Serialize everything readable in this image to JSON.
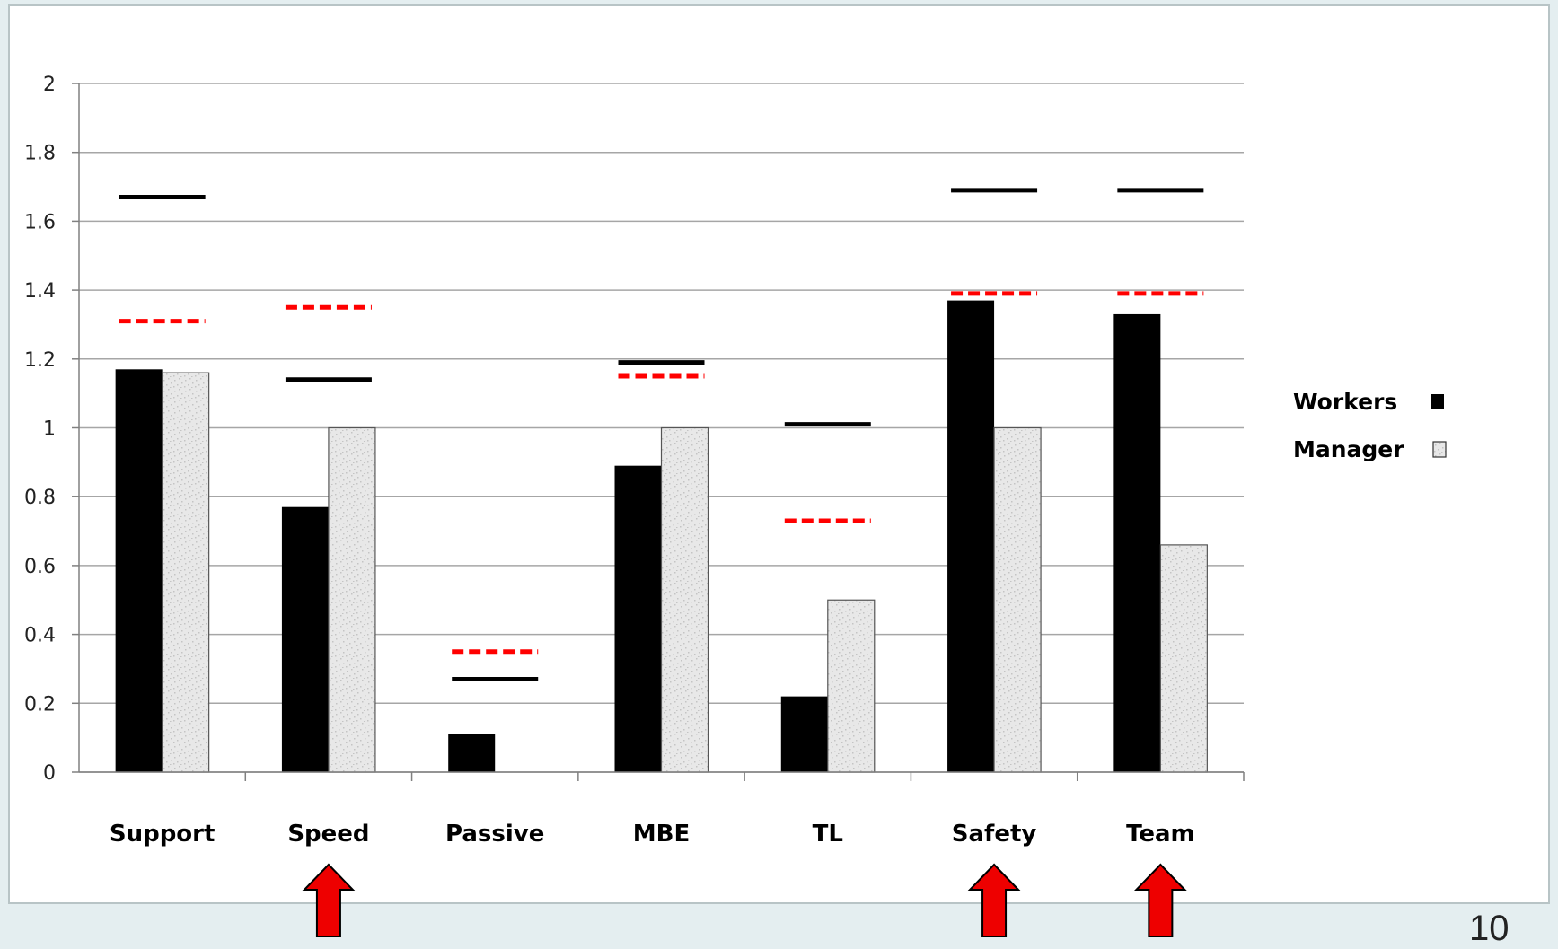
{
  "chart_data": {
    "type": "bar",
    "categories": [
      "Support",
      "Speed",
      "Passive",
      "MBE",
      "TL",
      "Safety",
      "Team"
    ],
    "series": [
      {
        "name": "Workers",
        "values": [
          1.17,
          0.77,
          0.11,
          0.89,
          0.22,
          1.37,
          1.33
        ],
        "color": "#000000"
      },
      {
        "name": "Manager",
        "values": [
          1.16,
          1.0,
          0.0,
          1.0,
          0.5,
          1.0,
          0.66
        ],
        "color": "#e8e8e8"
      }
    ],
    "reference_lines": {
      "solid_black": [
        1.67,
        1.14,
        0.27,
        1.19,
        1.01,
        1.69,
        1.69
      ],
      "dashed_red": [
        1.31,
        1.35,
        0.35,
        1.15,
        0.73,
        1.39,
        1.39
      ]
    },
    "yticks": [
      "0",
      "0.2",
      "0.4",
      "0.6",
      "0.8",
      "1",
      "1.2",
      "1.4",
      "1.6",
      "1.8",
      "2"
    ],
    "ylim": [
      0,
      2
    ],
    "grid": true,
    "legend_position": "right",
    "highlighted_categories": [
      "Speed",
      "Safety",
      "Team"
    ],
    "highlight_color": "#ee0000",
    "dash_color": "#ff0000"
  },
  "page": {
    "slide_number": "10"
  }
}
